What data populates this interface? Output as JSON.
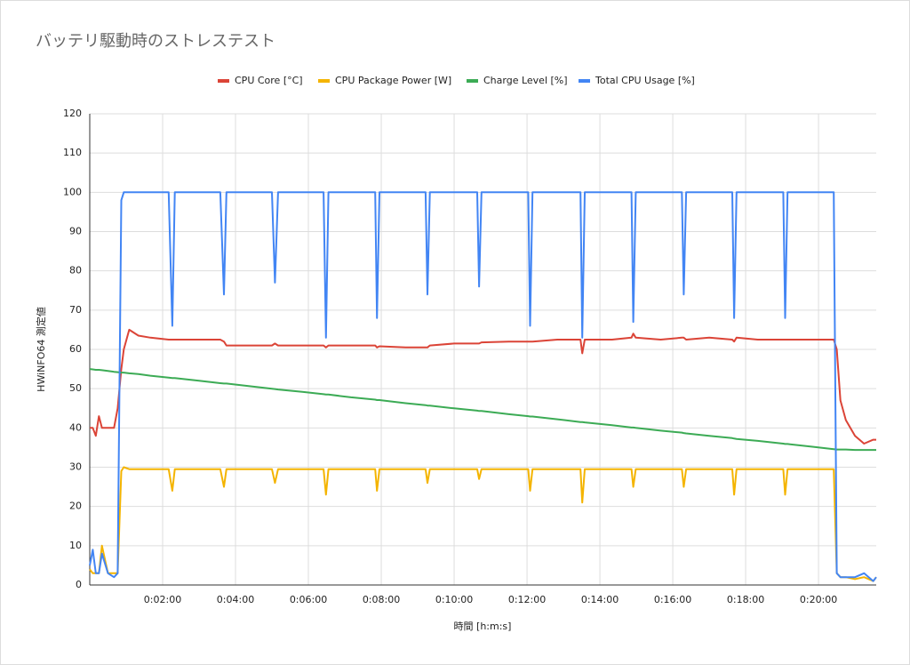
{
  "chart_data": {
    "type": "line",
    "title": "バッテリ駆動時のストレステスト",
    "x_label": "時間 [h:m:s]",
    "y_label": "HWiNFO64 測定値",
    "grid": true,
    "legend": "top",
    "xlim": [
      0,
      1295
    ],
    "ylim": [
      0,
      120
    ],
    "yticks": [
      0,
      10,
      20,
      30,
      40,
      50,
      60,
      70,
      80,
      90,
      100,
      110,
      120
    ],
    "xticks": [
      {
        "value": 120,
        "label": "0:02:00"
      },
      {
        "value": 240,
        "label": "0:04:00"
      },
      {
        "value": 360,
        "label": "0:06:00"
      },
      {
        "value": 480,
        "label": "0:08:00"
      },
      {
        "value": 600,
        "label": "0:10:00"
      },
      {
        "value": 720,
        "label": "0:12:00"
      },
      {
        "value": 840,
        "label": "0:14:00"
      },
      {
        "value": 960,
        "label": "0:16:00"
      },
      {
        "value": 1080,
        "label": "0:18:00"
      },
      {
        "value": 1200,
        "label": "0:20:00"
      }
    ],
    "x": [
      0,
      5,
      10,
      15,
      20,
      30,
      40,
      46,
      52,
      56,
      65,
      80,
      100,
      130,
      136,
      140,
      180,
      215,
      221,
      225,
      260,
      300,
      305,
      310,
      350,
      385,
      389,
      393,
      430,
      470,
      473,
      477,
      520,
      553,
      556,
      560,
      600,
      638,
      641,
      645,
      690,
      722,
      725,
      729,
      770,
      808,
      811,
      815,
      860,
      892,
      895,
      899,
      940,
      975,
      978,
      982,
      1020,
      1058,
      1061,
      1065,
      1100,
      1142,
      1145,
      1149,
      1190,
      1225,
      1230,
      1236,
      1245,
      1260,
      1275,
      1290,
      1295
    ],
    "series": [
      {
        "name": "CPU Core [°C]",
        "color": "#db4437",
        "values": [
          40,
          40,
          38,
          43,
          40,
          40,
          40,
          45,
          55,
          60,
          65,
          63.5,
          63,
          62.5,
          62.5,
          62.5,
          62.5,
          62.5,
          62,
          61,
          61,
          61,
          61.5,
          61,
          61,
          61,
          60.5,
          61,
          61,
          61,
          60.5,
          60.8,
          60.5,
          60.5,
          60.5,
          61,
          61.5,
          61.5,
          61.5,
          61.8,
          62,
          62,
          62,
          62,
          62.5,
          62.5,
          59,
          62.5,
          62.5,
          63,
          64,
          63,
          62.5,
          63,
          63,
          62.5,
          63,
          62.5,
          62,
          63,
          62.5,
          62.5,
          62.5,
          62.5,
          62.5,
          62.5,
          60,
          47,
          42,
          38,
          36,
          37,
          37
        ]
      },
      {
        "name": "CPU Package Power [W]",
        "color": "#f4b400",
        "values": [
          4,
          3,
          3,
          3,
          10,
          3,
          3,
          3,
          29,
          30,
          29.5,
          29.5,
          29.5,
          29.5,
          24,
          29.5,
          29.5,
          29.5,
          25,
          29.5,
          29.5,
          29.5,
          26,
          29.5,
          29.5,
          29.5,
          23,
          29.5,
          29.5,
          29.5,
          24,
          29.5,
          29.5,
          29.5,
          26,
          29.5,
          29.5,
          29.5,
          27,
          29.5,
          29.5,
          29.5,
          24,
          29.5,
          29.5,
          29.5,
          21,
          29.5,
          29.5,
          29.5,
          25,
          29.5,
          29.5,
          29.5,
          25,
          29.5,
          29.5,
          29.5,
          23,
          29.5,
          29.5,
          29.5,
          23,
          29.5,
          29.5,
          29.5,
          3,
          2,
          2,
          1.5,
          2,
          1,
          2
        ]
      },
      {
        "name": "Charge Level [%]",
        "color": "#3cab55",
        "values": [
          55,
          54.9,
          54.8,
          54.8,
          54.7,
          54.5,
          54.3,
          54.2,
          54.1,
          54.1,
          53.9,
          53.7,
          53.3,
          52.8,
          52.7,
          52.7,
          52,
          51.4,
          51.3,
          51.3,
          50.7,
          50,
          49.9,
          49.8,
          49.2,
          48.6,
          48.5,
          48.5,
          47.8,
          47.2,
          47.1,
          47.1,
          46.3,
          45.8,
          45.7,
          45.7,
          45,
          44.4,
          44.3,
          44.3,
          43.5,
          43,
          42.9,
          42.9,
          42.2,
          41.5,
          41.5,
          41.4,
          40.7,
          40.1,
          40.1,
          40,
          39.3,
          38.8,
          38.7,
          38.6,
          38,
          37.4,
          37.3,
          37.2,
          36.7,
          36,
          35.9,
          35.9,
          35.2,
          34.6,
          34.5,
          34.5,
          34.5,
          34.4,
          34.4,
          34.4,
          34.4
        ]
      },
      {
        "name": "Total CPU Usage [%]",
        "color": "#4285f4",
        "values": [
          5,
          9,
          3,
          3,
          8,
          3,
          2,
          3,
          98,
          100,
          100,
          100,
          100,
          100,
          66,
          100,
          100,
          100,
          74,
          100,
          100,
          100,
          77,
          100,
          100,
          100,
          63,
          100,
          100,
          100,
          68,
          100,
          100,
          100,
          74,
          100,
          100,
          100,
          76,
          100,
          100,
          100,
          66,
          100,
          100,
          100,
          63,
          100,
          100,
          100,
          67,
          100,
          100,
          100,
          74,
          100,
          100,
          100,
          68,
          100,
          100,
          100,
          68,
          100,
          100,
          100,
          3,
          2,
          2,
          2,
          3,
          1,
          2
        ]
      }
    ]
  }
}
